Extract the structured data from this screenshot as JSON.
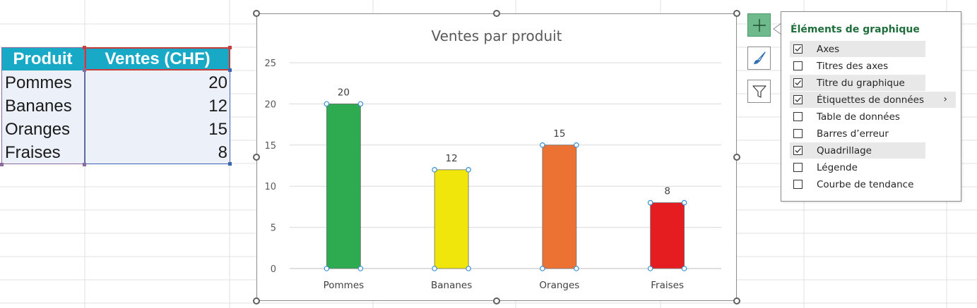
{
  "sheet_table": {
    "headers": [
      "Produit",
      "Ventes (CHF)"
    ],
    "rows": [
      {
        "produit": "Pommes",
        "ventes": "20"
      },
      {
        "produit": "Bananes",
        "ventes": "12"
      },
      {
        "produit": "Oranges",
        "ventes": "15"
      },
      {
        "produit": "Fraises",
        "ventes": "8"
      }
    ]
  },
  "chart_data": {
    "type": "bar",
    "title": "Ventes par produit",
    "categories": [
      "Pommes",
      "Bananes",
      "Oranges",
      "Fraises"
    ],
    "values": [
      20,
      12,
      15,
      8
    ],
    "data_labels": [
      "20",
      "12",
      "15",
      "8"
    ],
    "bar_colors": [
      "#2eaa50",
      "#f0e60c",
      "#eb7233",
      "#e51d21"
    ],
    "ylim": [
      0,
      25
    ],
    "y_ticks": [
      "0",
      "5",
      "10",
      "15",
      "20",
      "25"
    ],
    "grid": true,
    "legend": "none"
  },
  "side_buttons": [
    {
      "icon": "plus-icon"
    },
    {
      "icon": "brush-icon"
    },
    {
      "icon": "filter-icon"
    }
  ],
  "elements_panel": {
    "title": "Éléments de graphique",
    "options": [
      {
        "label": "Axes",
        "checked": true,
        "highlighted": true
      },
      {
        "label": "Titres des axes",
        "checked": false,
        "highlighted": false
      },
      {
        "label": "Titre du graphique",
        "checked": true,
        "highlighted": true
      },
      {
        "label": "Étiquettes de données",
        "checked": true,
        "highlighted": true,
        "submenu": true
      },
      {
        "label": "Table de données",
        "checked": false,
        "highlighted": false
      },
      {
        "label": "Barres d’erreur",
        "checked": false,
        "highlighted": false
      },
      {
        "label": "Quadrillage",
        "checked": true,
        "highlighted": true
      },
      {
        "label": "Légende",
        "checked": false,
        "highlighted": false
      },
      {
        "label": "Courbe de tendance",
        "checked": false,
        "highlighted": false
      }
    ],
    "submenu_glyph": "›"
  },
  "colors": {
    "header_fill": "#18a9c6",
    "body_fill": "#ecf0f9",
    "panel_title": "#1f6e3c",
    "plus_button": "#6fba8c",
    "gridline": "#d9d9d9"
  }
}
